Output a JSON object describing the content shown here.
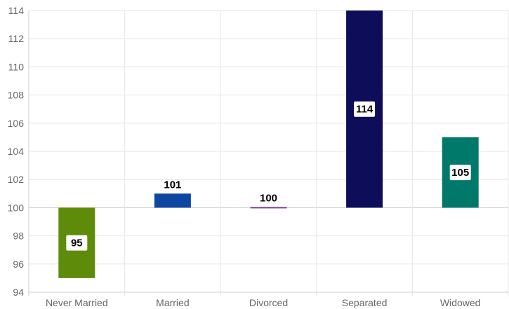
{
  "chart_data": {
    "type": "bar",
    "title": "",
    "xlabel": "",
    "ylabel": "",
    "categories": [
      "Never Married",
      "Married",
      "Divorced",
      "Separated",
      "Widowed"
    ],
    "values": [
      95,
      101,
      100,
      114,
      105
    ],
    "labels": [
      "95",
      "101",
      "100",
      "114",
      "105"
    ],
    "baseline": 100,
    "ylim": [
      94,
      114
    ],
    "yticks": [
      "94",
      "96",
      "98",
      "100",
      "102",
      "104",
      "106",
      "108",
      "110",
      "112",
      "114"
    ],
    "colors": [
      "#5e8c0a",
      "#0d47a1",
      "#7b3fa0",
      "#0d0d5a",
      "#00796b"
    ],
    "grid": true,
    "legend": "none"
  }
}
